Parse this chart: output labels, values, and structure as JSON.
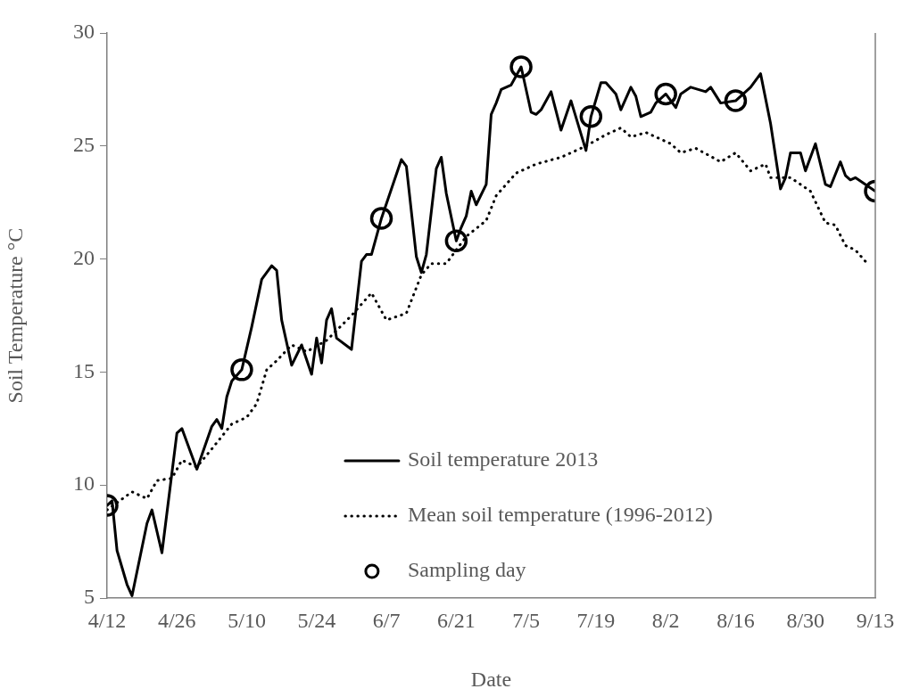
{
  "chart_data": {
    "type": "line",
    "xlabel": "Date",
    "ylabel": "Soil Temperature °C",
    "legend": "bottom",
    "xlim": [
      "--04-12",
      "--09-13"
    ],
    "xticks": [
      {
        "value": "--04-12",
        "label": "4/12"
      },
      {
        "value": "--04-26",
        "label": "4/26"
      },
      {
        "value": "--05-10",
        "label": "5/10"
      },
      {
        "value": "--05-24",
        "label": "5/24"
      },
      {
        "value": "--06-07",
        "label": "6/7"
      },
      {
        "value": "--06-21",
        "label": "6/21"
      },
      {
        "value": "--07-05",
        "label": "7/5"
      },
      {
        "value": "--07-19",
        "label": "7/19"
      },
      {
        "value": "--08-02",
        "label": "8/2"
      },
      {
        "value": "--08-16",
        "label": "8/16"
      },
      {
        "value": "--08-30",
        "label": "8/30"
      },
      {
        "value": "--09-13",
        "label": "9/13"
      }
    ],
    "ylim": [
      5,
      30
    ],
    "yticks": [
      5,
      10,
      15,
      20,
      25,
      30
    ],
    "series": [
      {
        "name": "Soil temperature 2013",
        "color": "#000000",
        "line_style": "solid",
        "marker": "none",
        "x": [
          "--04-12",
          "--04-13",
          "--04-14",
          "--04-16",
          "--04-17",
          "--04-20",
          "--04-21",
          "--04-23",
          "--04-26",
          "--04-27",
          "--04-30",
          "--05-03",
          "--05-04",
          "--05-05",
          "--05-06",
          "--05-07",
          "--05-09",
          "--05-11",
          "--05-13",
          "--05-15",
          "--05-16",
          "--05-17",
          "--05-19",
          "--05-21",
          "--05-23",
          "--05-24",
          "--05-25",
          "--05-26",
          "--05-27",
          "--05-28",
          "--05-31",
          "--06-02",
          "--06-03",
          "--06-04",
          "--06-06",
          "--06-08",
          "--06-10",
          "--06-11",
          "--06-13",
          "--06-14",
          "--06-15",
          "--06-17",
          "--06-18",
          "--06-19",
          "--06-21",
          "--06-22",
          "--06-23",
          "--06-24",
          "--06-25",
          "--06-27",
          "--06-28",
          "--06-29",
          "--06-30",
          "--07-02",
          "--07-04",
          "--07-06",
          "--07-07",
          "--07-08",
          "--07-10",
          "--07-12",
          "--07-14",
          "--07-17",
          "--07-18",
          "--07-20",
          "--07-21",
          "--07-23",
          "--07-24",
          "--07-26",
          "--07-27",
          "--07-28",
          "--07-30",
          "--07-31",
          "--08-02",
          "--08-04",
          "--08-05",
          "--08-07",
          "--08-10",
          "--08-11",
          "--08-13",
          "--08-16",
          "--08-19",
          "--08-21",
          "--08-23",
          "--08-25",
          "--08-26",
          "--08-27",
          "--08-29",
          "--08-30",
          "--09-01",
          "--09-03",
          "--09-04",
          "--09-06",
          "--09-07",
          "--09-08",
          "--09-09",
          "--09-13"
        ],
        "values": [
          9.1,
          9.3,
          7.1,
          5.6,
          5.1,
          8.3,
          8.9,
          7.0,
          12.3,
          12.5,
          10.7,
          12.6,
          12.9,
          12.5,
          13.9,
          14.6,
          15.1,
          17.0,
          19.1,
          19.7,
          19.5,
          17.3,
          15.3,
          16.2,
          14.9,
          16.5,
          15.4,
          17.3,
          17.8,
          16.5,
          16.0,
          19.9,
          20.2,
          20.2,
          21.8,
          23.1,
          24.4,
          24.1,
          20.1,
          19.4,
          20.2,
          24.0,
          24.5,
          22.9,
          20.8,
          21.4,
          21.9,
          23.0,
          22.4,
          23.3,
          26.4,
          26.9,
          27.5,
          27.7,
          28.5,
          26.5,
          26.4,
          26.6,
          27.4,
          25.7,
          27.0,
          24.8,
          26.3,
          27.8,
          27.8,
          27.3,
          26.6,
          27.6,
          27.2,
          26.3,
          26.5,
          26.9,
          27.3,
          26.7,
          27.3,
          27.6,
          27.4,
          27.6,
          26.9,
          27.0,
          27.6,
          28.2,
          26.0,
          23.1,
          23.6,
          24.7,
          24.7,
          23.9,
          25.1,
          23.3,
          23.2,
          24.3,
          23.7,
          23.5,
          23.6,
          23.0
        ]
      },
      {
        "name": "Mean soil temperature (1996-2012)",
        "color": "#000000",
        "line_style": "dotted",
        "marker": "none",
        "x": [
          "--04-12",
          "--04-17",
          "--04-20",
          "--04-22",
          "--04-25",
          "--04-27",
          "--04-30",
          "--05-03",
          "--05-07",
          "--05-10",
          "--05-12",
          "--05-14",
          "--05-16",
          "--05-19",
          "--05-22",
          "--05-26",
          "--05-31",
          "--06-04",
          "--06-07",
          "--06-11",
          "--06-14",
          "--06-16",
          "--06-19",
          "--06-23",
          "--06-27",
          "--06-29",
          "--07-03",
          "--07-07",
          "--07-12",
          "--07-17",
          "--07-21",
          "--07-24",
          "--07-26",
          "--07-29",
          "--08-03",
          "--08-05",
          "--08-08",
          "--08-13",
          "--08-16",
          "--08-19",
          "--08-22",
          "--08-23",
          "--08-27",
          "--08-31",
          "--09-03",
          "--09-05",
          "--09-07",
          "--09-09",
          "--09-11"
        ],
        "values": [
          8.9,
          9.7,
          9.4,
          10.2,
          10.3,
          11.1,
          10.8,
          11.6,
          12.7,
          13.0,
          13.6,
          15.1,
          15.5,
          16.2,
          15.9,
          16.4,
          17.5,
          18.5,
          17.3,
          17.6,
          19.3,
          19.8,
          19.8,
          21.0,
          21.7,
          22.8,
          23.8,
          24.2,
          24.5,
          25.0,
          25.5,
          25.8,
          25.4,
          25.6,
          25.1,
          24.7,
          24.9,
          24.3,
          24.7,
          23.9,
          24.2,
          23.6,
          23.6,
          23.0,
          21.6,
          21.5,
          20.6,
          20.4,
          19.9
        ]
      },
      {
        "type": "scatter",
        "name": "Sampling day",
        "color": "#000000",
        "marker": "circle",
        "x": [
          "--04-12",
          "--05-09",
          "--06-06",
          "--06-21",
          "--07-04",
          "--07-18",
          "--08-02",
          "--08-16",
          "--09-13"
        ],
        "values": [
          9.1,
          15.1,
          21.8,
          20.8,
          28.5,
          26.3,
          27.3,
          27.0,
          23.0
        ]
      }
    ]
  }
}
